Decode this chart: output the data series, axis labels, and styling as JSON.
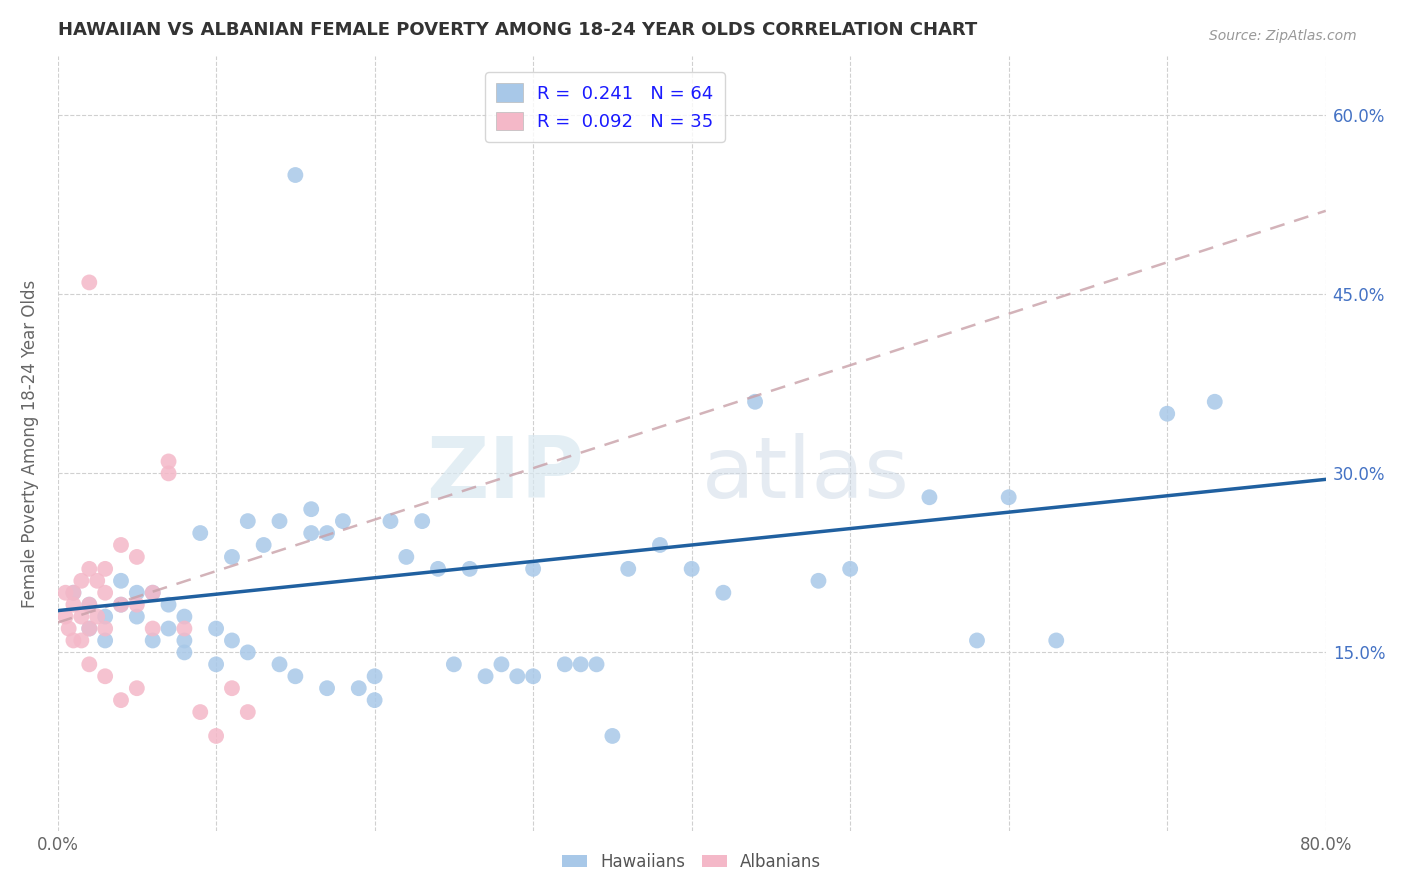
{
  "title": "HAWAIIAN VS ALBANIAN FEMALE POVERTY AMONG 18-24 YEAR OLDS CORRELATION CHART",
  "source": "Source: ZipAtlas.com",
  "ylabel": "Female Poverty Among 18-24 Year Olds",
  "xlim": [
    0.0,
    0.8
  ],
  "ylim": [
    0.0,
    0.65
  ],
  "ytick_positions": [
    0.15,
    0.3,
    0.45,
    0.6
  ],
  "ytick_labels": [
    "15.0%",
    "30.0%",
    "45.0%",
    "60.0%"
  ],
  "hawaiian_color": "#a8c8e8",
  "albanian_color": "#f4b8c8",
  "hawaiian_line_color": "#2060a0",
  "albanian_line_color": "#d06070",
  "watermark_zip": "ZIP",
  "watermark_atlas": "atlas",
  "background_color": "#ffffff",
  "grid_color": "#d0d0d0",
  "hawaiian_R": 0.241,
  "hawaiian_N": 64,
  "albanian_R": 0.092,
  "albanian_N": 35,
  "hawaiian_x": [
    0.01,
    0.02,
    0.02,
    0.03,
    0.03,
    0.04,
    0.04,
    0.05,
    0.05,
    0.06,
    0.06,
    0.07,
    0.07,
    0.08,
    0.08,
    0.08,
    0.09,
    0.1,
    0.1,
    0.11,
    0.11,
    0.12,
    0.12,
    0.13,
    0.14,
    0.14,
    0.15,
    0.15,
    0.16,
    0.16,
    0.17,
    0.17,
    0.18,
    0.19,
    0.2,
    0.2,
    0.21,
    0.22,
    0.23,
    0.24,
    0.25,
    0.26,
    0.27,
    0.28,
    0.29,
    0.3,
    0.3,
    0.32,
    0.33,
    0.34,
    0.35,
    0.36,
    0.38,
    0.4,
    0.42,
    0.44,
    0.48,
    0.5,
    0.55,
    0.58,
    0.6,
    0.63,
    0.7,
    0.73
  ],
  "hawaiian_y": [
    0.2,
    0.19,
    0.17,
    0.18,
    0.16,
    0.21,
    0.19,
    0.2,
    0.18,
    0.2,
    0.16,
    0.17,
    0.19,
    0.15,
    0.16,
    0.18,
    0.25,
    0.14,
    0.17,
    0.16,
    0.23,
    0.15,
    0.26,
    0.24,
    0.14,
    0.26,
    0.55,
    0.13,
    0.25,
    0.27,
    0.12,
    0.25,
    0.26,
    0.12,
    0.11,
    0.13,
    0.26,
    0.23,
    0.26,
    0.22,
    0.14,
    0.22,
    0.13,
    0.14,
    0.13,
    0.22,
    0.13,
    0.14,
    0.14,
    0.14,
    0.08,
    0.22,
    0.24,
    0.22,
    0.2,
    0.36,
    0.21,
    0.22,
    0.28,
    0.16,
    0.28,
    0.16,
    0.35,
    0.36
  ],
  "albanian_x": [
    0.005,
    0.005,
    0.007,
    0.01,
    0.01,
    0.01,
    0.015,
    0.015,
    0.015,
    0.02,
    0.02,
    0.02,
    0.02,
    0.025,
    0.025,
    0.03,
    0.03,
    0.03,
    0.03,
    0.04,
    0.04,
    0.04,
    0.05,
    0.05,
    0.05,
    0.06,
    0.06,
    0.07,
    0.07,
    0.08,
    0.09,
    0.1,
    0.11,
    0.12,
    0.02
  ],
  "albanian_y": [
    0.2,
    0.18,
    0.17,
    0.2,
    0.19,
    0.16,
    0.21,
    0.18,
    0.16,
    0.22,
    0.19,
    0.17,
    0.14,
    0.21,
    0.18,
    0.22,
    0.2,
    0.17,
    0.13,
    0.24,
    0.19,
    0.11,
    0.23,
    0.19,
    0.12,
    0.2,
    0.17,
    0.3,
    0.31,
    0.17,
    0.1,
    0.08,
    0.12,
    0.1,
    0.46
  ],
  "hawaiian_line_x": [
    0.0,
    0.8
  ],
  "hawaiian_line_y": [
    0.185,
    0.295
  ],
  "albanian_line_x": [
    0.0,
    0.8
  ],
  "albanian_line_y": [
    0.175,
    0.52
  ]
}
